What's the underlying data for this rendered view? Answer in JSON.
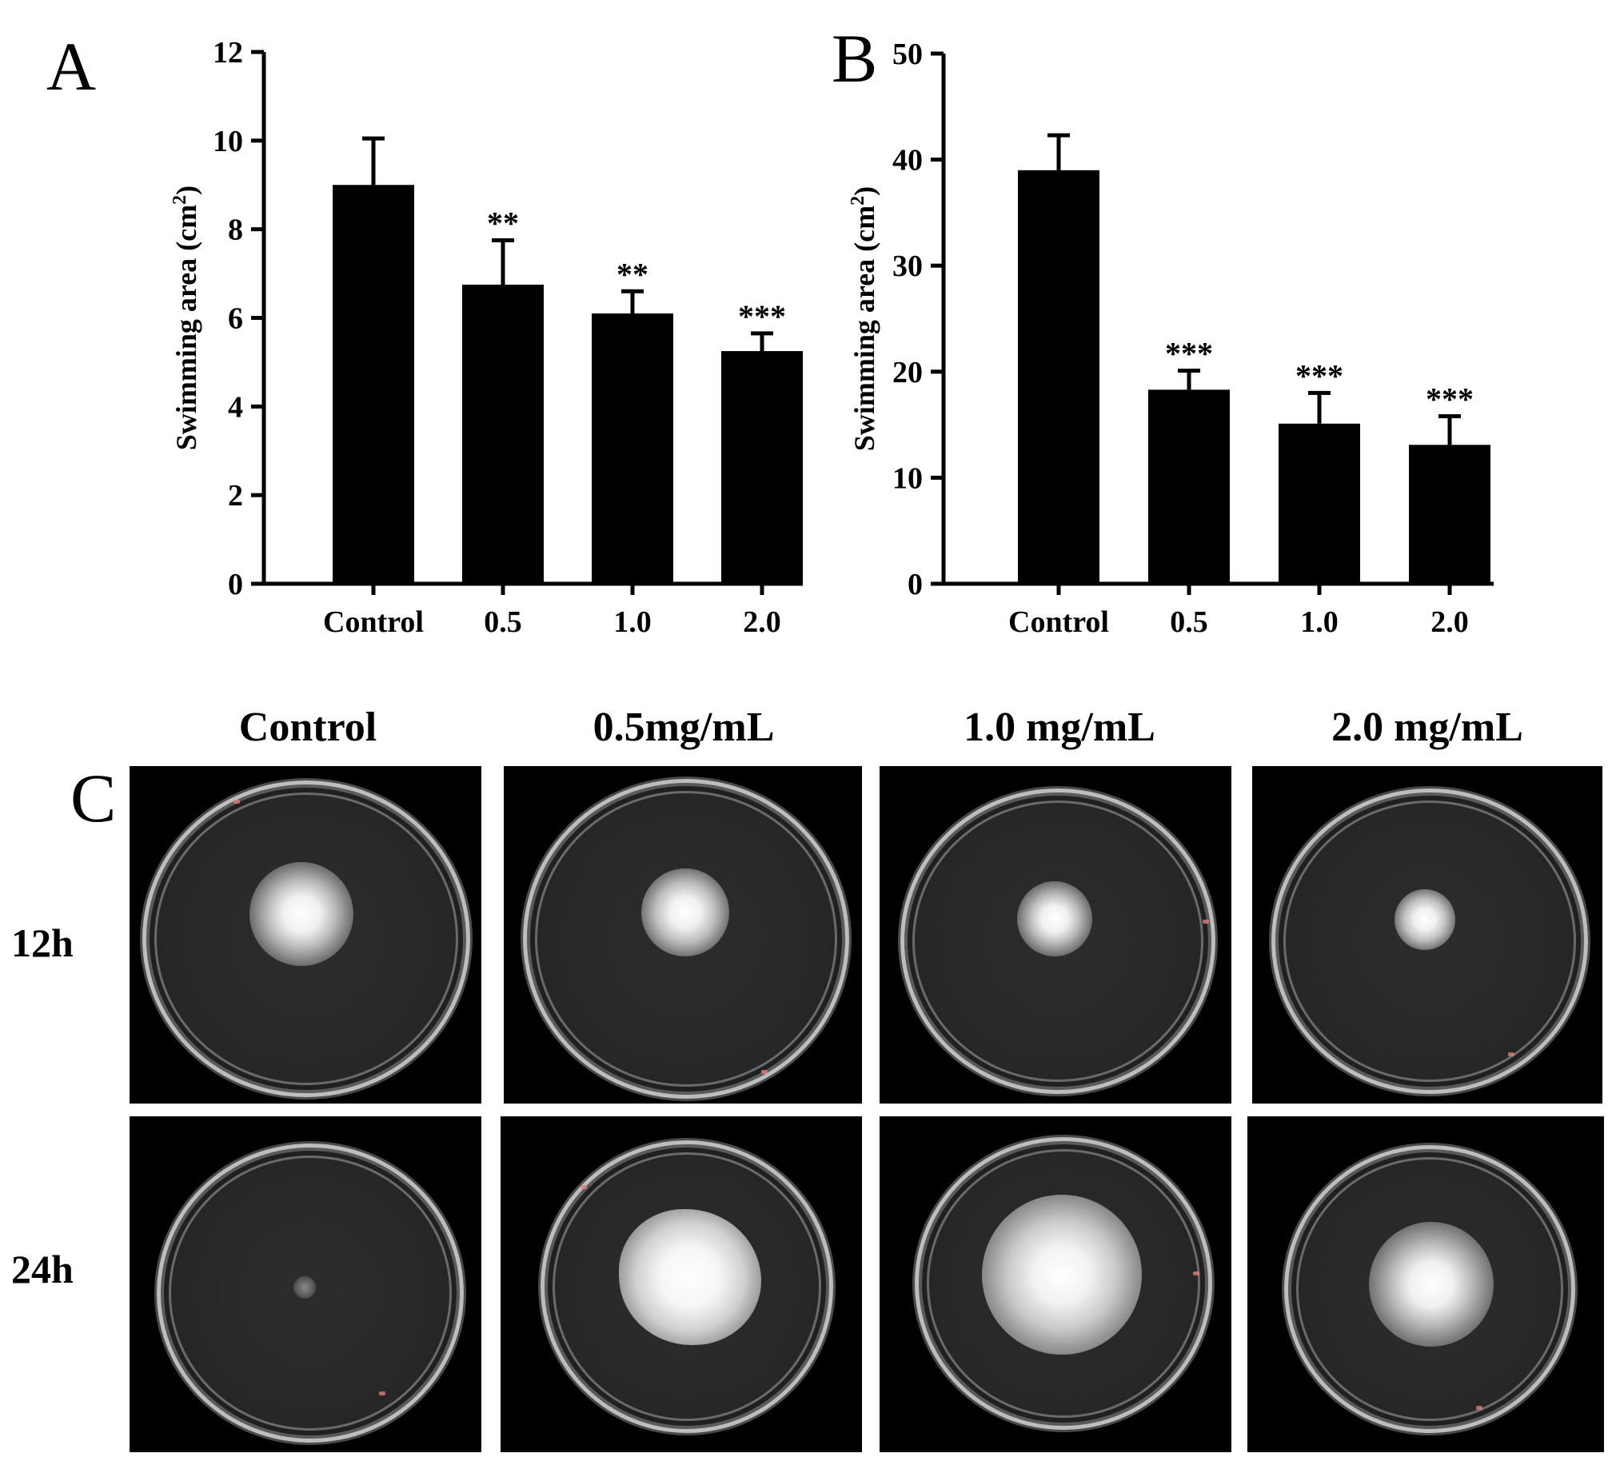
{
  "panels": {
    "A": "A",
    "B": "B",
    "C": "C"
  },
  "chart_data": [
    {
      "type": "bar",
      "panel": "A",
      "categories": [
        "Control",
        "0.5",
        "1.0",
        "2.0"
      ],
      "values": [
        9.0,
        6.75,
        6.1,
        5.25
      ],
      "errors": [
        1.05,
        1.0,
        0.5,
        0.4
      ],
      "significance": [
        "",
        "**",
        "**",
        "***"
      ],
      "ylabel": "Swimming area (cm2)",
      "ylim": [
        0,
        12
      ],
      "yticks": [
        0,
        2,
        4,
        6,
        8,
        10,
        12
      ],
      "bar_color": "#000000"
    },
    {
      "type": "bar",
      "panel": "B",
      "categories": [
        "Control",
        "0.5",
        "1.0",
        "2.0"
      ],
      "values": [
        39.0,
        18.3,
        15.1,
        13.1
      ],
      "errors": [
        3.3,
        1.8,
        2.9,
        2.7
      ],
      "significance": [
        "",
        "***",
        "***",
        "***"
      ],
      "ylabel": "Swimming area (cm2)",
      "ylim": [
        0,
        50
      ],
      "yticks": [
        0,
        10,
        20,
        30,
        40,
        50
      ],
      "bar_color": "#000000"
    }
  ],
  "plates": {
    "columns": [
      "Control",
      "0.5mg/mL",
      "1.0 mg/mL",
      "2.0 mg/mL"
    ],
    "rows": [
      "12h",
      "24h"
    ]
  }
}
